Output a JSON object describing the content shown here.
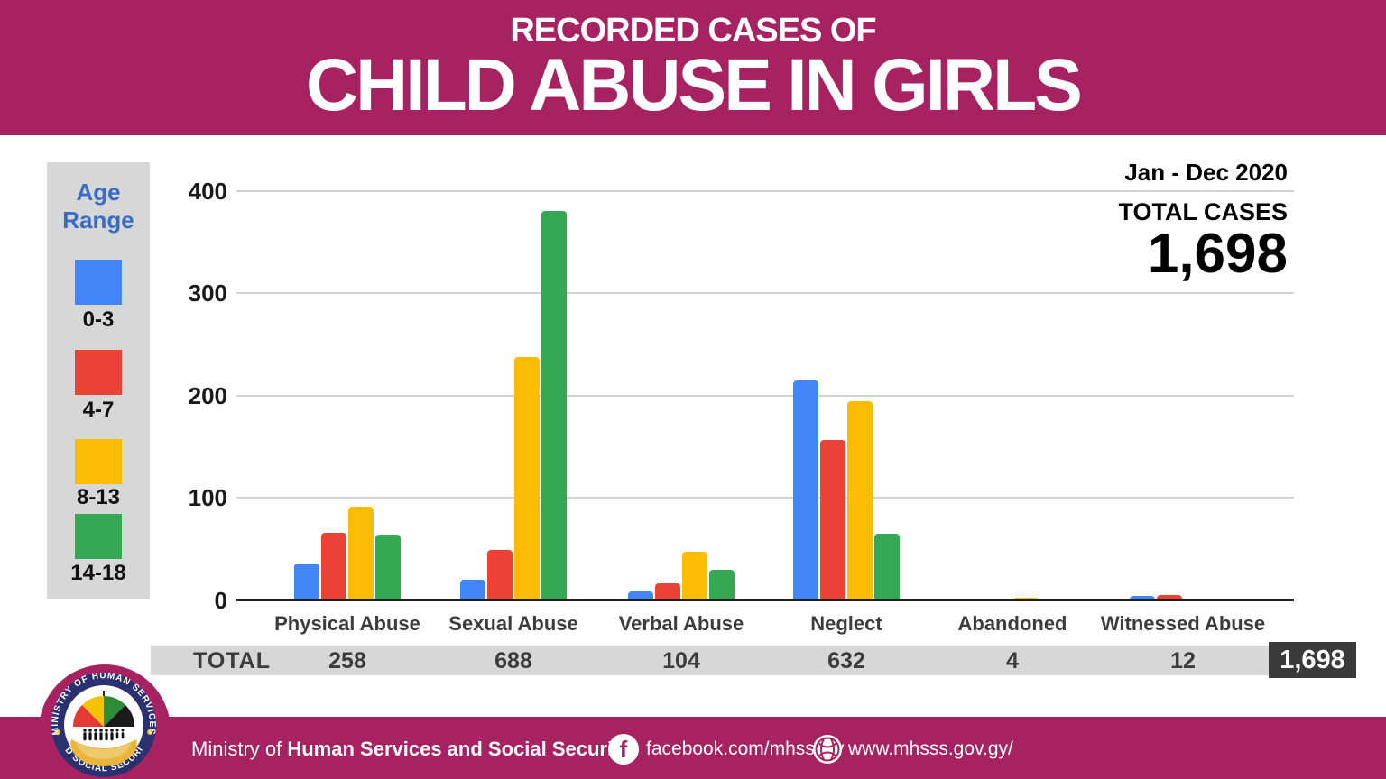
{
  "header": {
    "kicker": "RECORDED CASES OF",
    "title": "CHILD ABUSE IN GIRLS"
  },
  "meta": {
    "period": "Jan - Dec 2020",
    "total_cases_label": "TOTAL CASES",
    "total_cases_value": "1,698"
  },
  "legend": {
    "title": "Age Range",
    "items": [
      {
        "label": "0-3",
        "color": "#4285F4"
      },
      {
        "label": "4-7",
        "color": "#EA4335"
      },
      {
        "label": "8-13",
        "color": "#FBBC05"
      },
      {
        "label": "14-18",
        "color": "#34A853"
      }
    ]
  },
  "chart_data": {
    "type": "bar",
    "title": "Recorded Cases of Child Abuse in Girls, Jan - Dec 2020",
    "categories": [
      "Physical Abuse",
      "Sexual Abuse",
      "Verbal Abuse",
      "Neglect",
      "Abandoned",
      "Witnessed Abuse"
    ],
    "series": [
      {
        "name": "0-3",
        "color": "#4285F4",
        "values": [
          36,
          20,
          9,
          215,
          0,
          4
        ]
      },
      {
        "name": "4-7",
        "color": "#EA4335",
        "values": [
          66,
          49,
          17,
          157,
          1,
          5
        ]
      },
      {
        "name": "8-13",
        "color": "#FBBC05",
        "values": [
          92,
          238,
          48,
          195,
          3,
          2
        ]
      },
      {
        "name": "14-18",
        "color": "#34A853",
        "values": [
          64,
          381,
          30,
          65,
          0,
          1
        ]
      }
    ],
    "ylim": [
      0,
      400
    ],
    "yticks": [
      0,
      100,
      200,
      300,
      400
    ],
    "grid": true,
    "legend_position": "left",
    "totals_row": {
      "label": "TOTAL",
      "values": [
        "258",
        "688",
        "104",
        "632",
        "4",
        "12"
      ],
      "grand_total": "1,698"
    }
  },
  "footer": {
    "brand_prefix": "Ministry of ",
    "brand_bold": "Human Services and Social Security",
    "facebook": "facebook.com/mhsssgy",
    "website": "www.mhsss.gov.gy/",
    "logo_top_text": "MINISTRY OF HUMAN SERVICES",
    "logo_bottom_text": "AND SOCIAL SECURITY"
  },
  "colors": {
    "brand_magenta": "#A72260",
    "panel_gray": "#D7D7D7",
    "grand_total_box": "#3A3A3A",
    "legend_title_blue": "#3A6CC5"
  }
}
